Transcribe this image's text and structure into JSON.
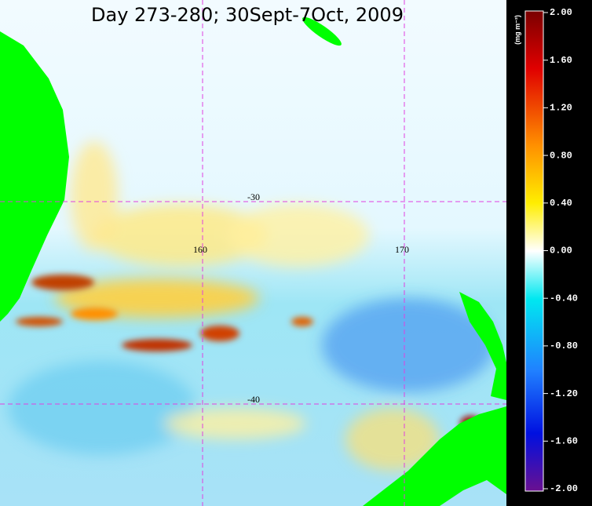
{
  "title": "Day 273-280; 30Sept-7Oct, 2009",
  "colorbar": {
    "unit": "(mg m⁻³)",
    "lim": [
      -2,
      2
    ],
    "ticks": [
      {
        "value": 2,
        "label": "2.00"
      },
      {
        "value": 1.6,
        "label": "1.60"
      },
      {
        "value": 1.2,
        "label": "1.20"
      },
      {
        "value": 0.8,
        "label": "0.80"
      },
      {
        "value": 0.4,
        "label": "0.40"
      },
      {
        "value": 0,
        "label": "0.00"
      },
      {
        "value": -0.4,
        "label": "-0.40"
      },
      {
        "value": -0.8,
        "label": "-0.80"
      },
      {
        "value": -1.2,
        "label": "-1.20"
      },
      {
        "value": -1.6,
        "label": "-1.60"
      },
      {
        "value": -2,
        "label": "-2.00"
      }
    ]
  },
  "graticule": {
    "latitudes": [
      "-30",
      "-40"
    ],
    "longitudes": [
      "160",
      "170"
    ]
  }
}
